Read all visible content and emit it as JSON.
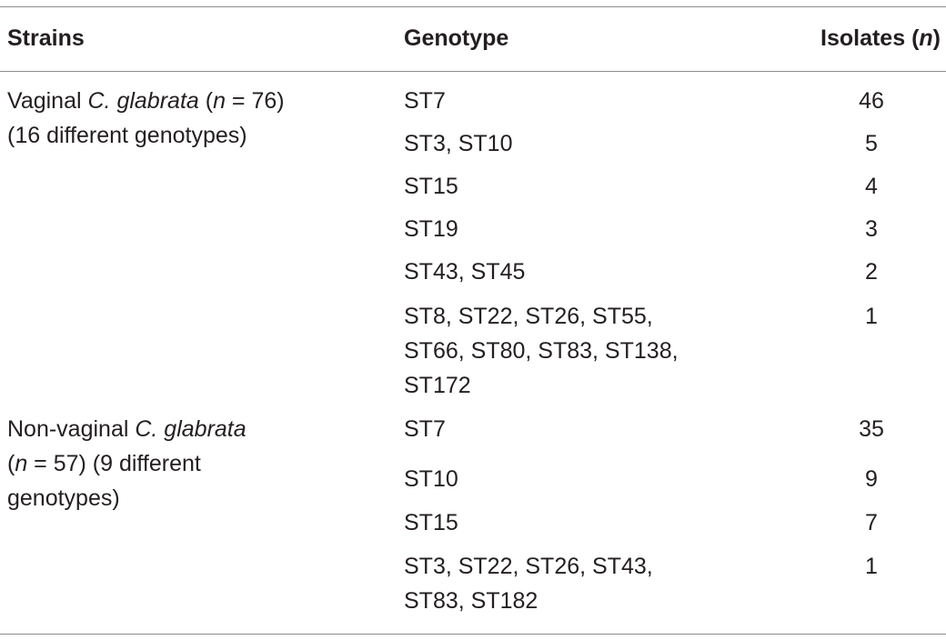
{
  "headers": {
    "strains": "Strains",
    "genotype": "Genotype",
    "isolates_prefix": "Isolates (",
    "isolates_n": "n",
    "isolates_suffix": ")"
  },
  "groups": [
    {
      "strain_prefix": "Vaginal ",
      "strain_species": "C. glabrata",
      "strain_open": " (",
      "strain_n": "n",
      "strain_count": " = 76)",
      "strain_note": "(16 different genotypes)",
      "rows": [
        {
          "genotype": "ST7",
          "isolates": "46"
        },
        {
          "genotype": "ST3, ST10",
          "isolates": "5"
        },
        {
          "genotype": "ST15",
          "isolates": "4"
        },
        {
          "genotype": "ST19",
          "isolates": "3"
        },
        {
          "genotype": "ST43, ST45",
          "isolates": "2"
        },
        {
          "genotype_lines": [
            "ST8, ST22, ST26, ST55,",
            "ST66, ST80, ST83, ST138,",
            "ST172"
          ],
          "isolates": "1"
        }
      ]
    },
    {
      "strain_prefix": "Non-vaginal ",
      "strain_species": "C. glabrata",
      "strain_open": "(",
      "strain_n": "n",
      "strain_count": " = 57) (9 different",
      "strain_note": "genotypes)",
      "rows": [
        {
          "genotype": "ST7",
          "isolates": "35"
        },
        {
          "genotype": "ST10",
          "isolates": "9"
        },
        {
          "genotype": "ST15",
          "isolates": "7"
        },
        {
          "genotype_lines": [
            "ST3, ST22, ST26, ST43,",
            "ST83, ST182"
          ],
          "isolates": "1"
        }
      ]
    }
  ]
}
